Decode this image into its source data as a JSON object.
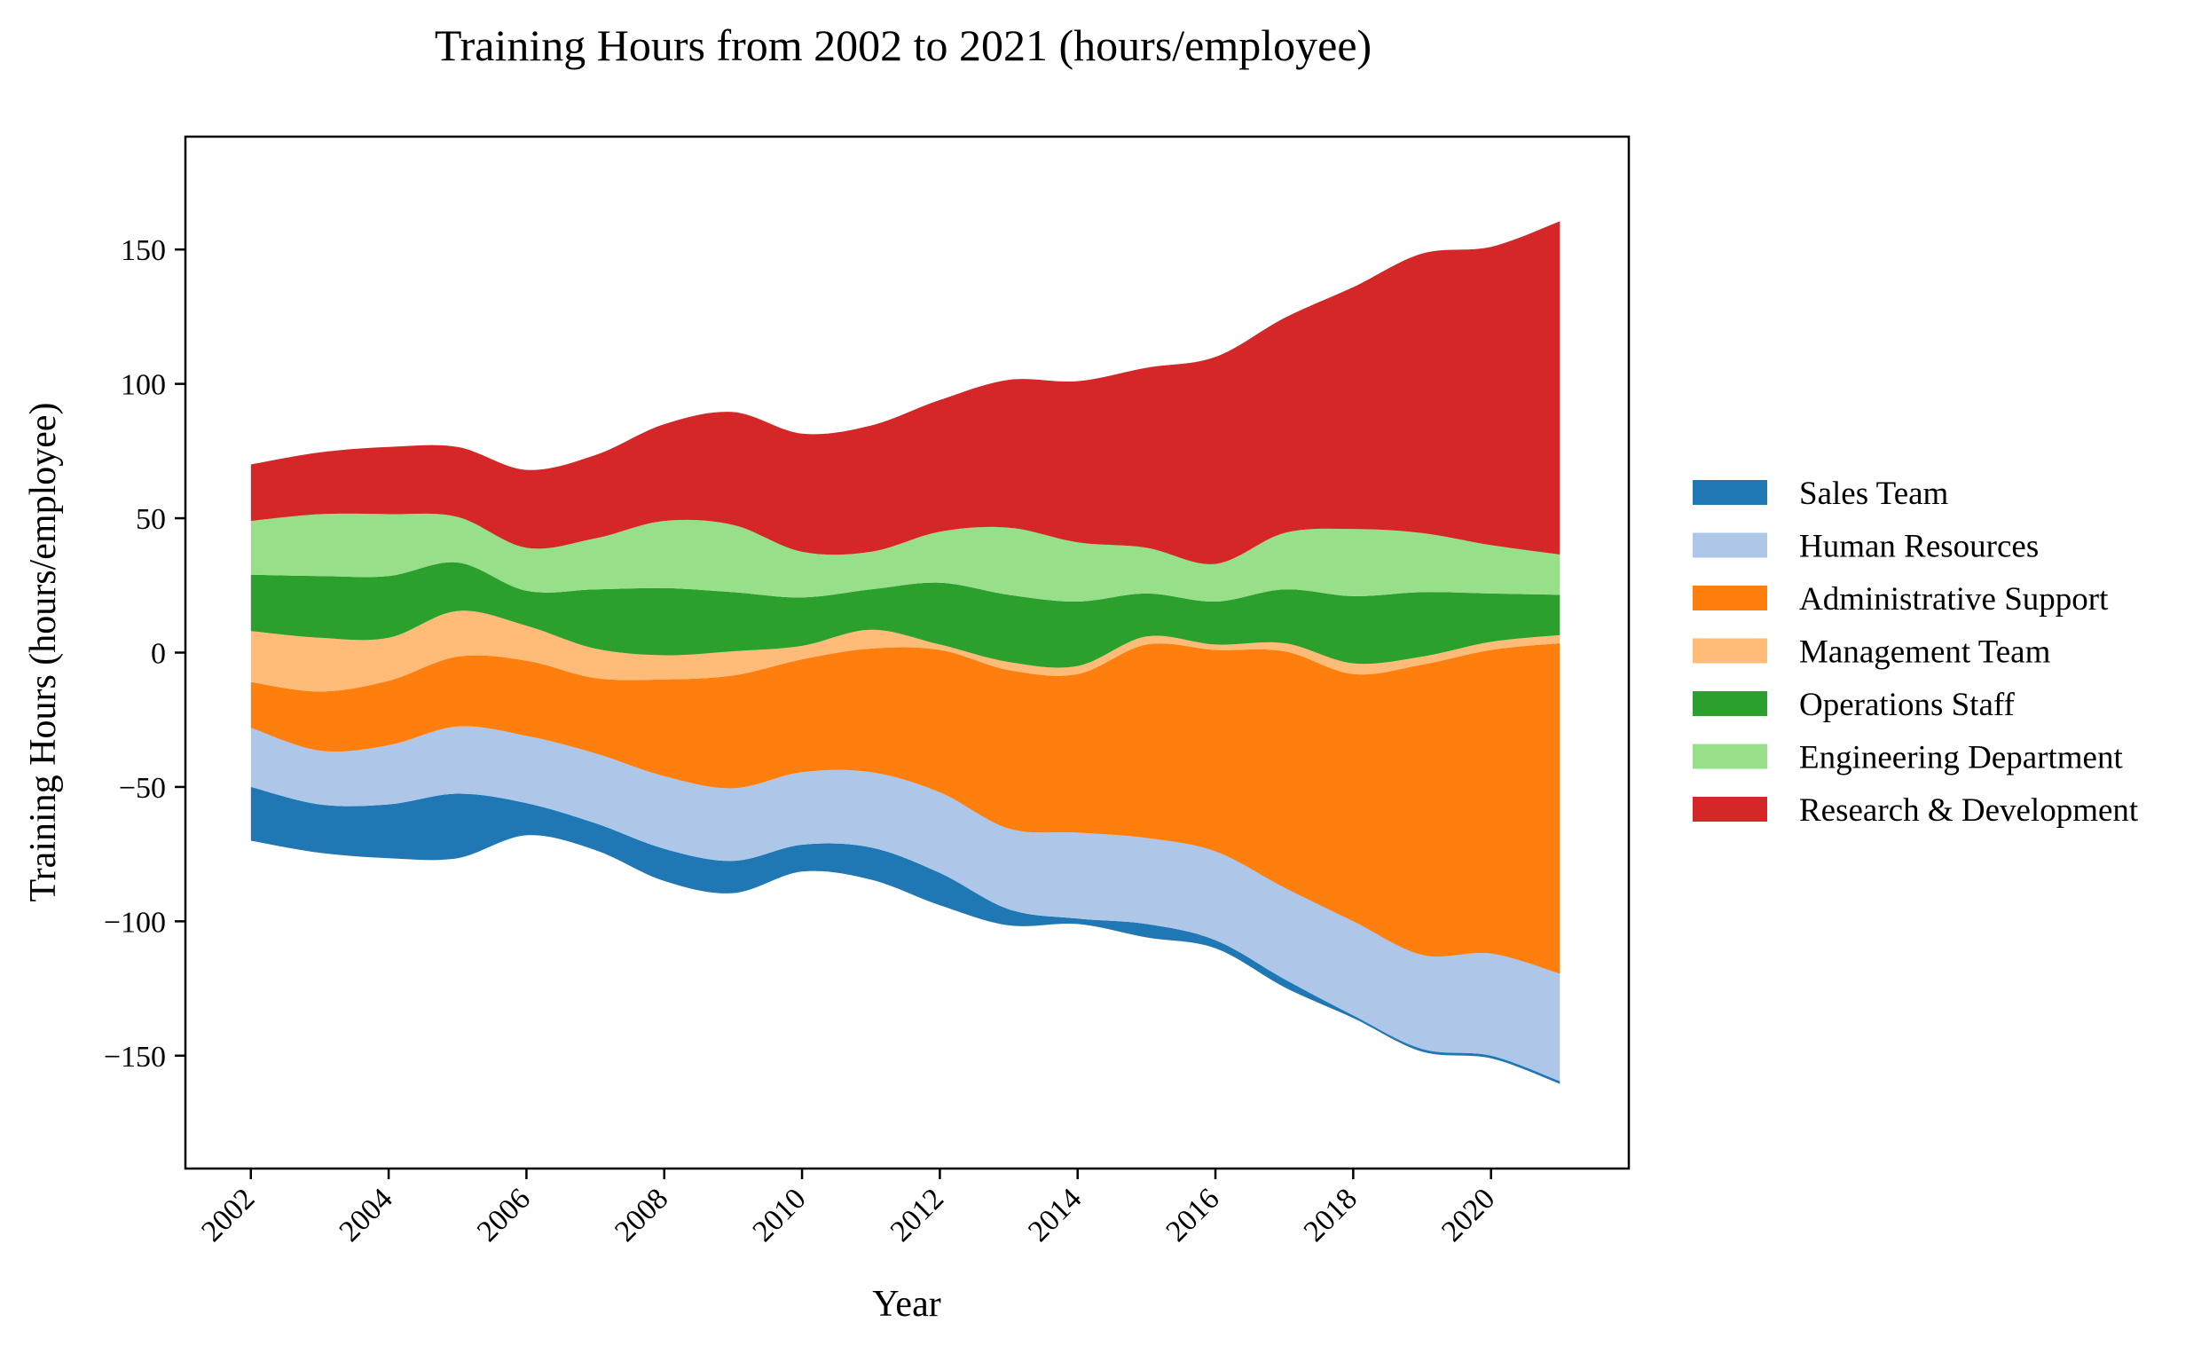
{
  "chart_data": {
    "type": "area",
    "subtype": "streamgraph",
    "title": "Training Hours from 2002 to 2021 (hours/employee)",
    "xlabel": "Year",
    "ylabel": "Training Hours (hours/employee)",
    "x": [
      2002,
      2003,
      2004,
      2005,
      2006,
      2007,
      2008,
      2009,
      2010,
      2011,
      2012,
      2013,
      2014,
      2015,
      2016,
      2017,
      2018,
      2019,
      2020,
      2021
    ],
    "x_ticks": [
      "2002",
      "2004",
      "2006",
      "2008",
      "2010",
      "2012",
      "2014",
      "2016",
      "2018",
      "2020"
    ],
    "x_tick_values": [
      2002,
      2004,
      2006,
      2008,
      2010,
      2012,
      2014,
      2016,
      2018,
      2020
    ],
    "y_ticks": [
      "150",
      "100",
      "50",
      "0",
      "−50",
      "−100",
      "−150"
    ],
    "y_tick_values": [
      150,
      100,
      50,
      0,
      -50,
      -100,
      -150
    ],
    "xlim": [
      2001.05,
      2022.0
    ],
    "ylim": [
      -192,
      192
    ],
    "grid": false,
    "legend_position": "right",
    "series": [
      {
        "name": "Sales Team",
        "color": "#1f77b4",
        "values": [
          20,
          18,
          20,
          24,
          12,
          10,
          12,
          12,
          10,
          12,
          12,
          6,
          2,
          5,
          3,
          3,
          1,
          1,
          1,
          1
        ]
      },
      {
        "name": "Human Resources",
        "color": "#aec7e8",
        "values": [
          22,
          20,
          22,
          25,
          25,
          26,
          27,
          27,
          27,
          28,
          30,
          30,
          32,
          32,
          33,
          34,
          35,
          35,
          38,
          40
        ]
      },
      {
        "name": "Administrative Support",
        "color": "#ff7f0e",
        "values": [
          17,
          22,
          24,
          26,
          28,
          28,
          36,
          42,
          42,
          46,
          53,
          59,
          59,
          72,
          75,
          88,
          92,
          108,
          113,
          123
        ]
      },
      {
        "name": "Management Team",
        "color": "#ffbb78",
        "values": [
          19,
          20,
          16,
          17,
          13,
          11,
          9,
          9,
          5,
          7,
          2,
          3,
          3,
          3,
          2,
          3,
          4,
          3,
          3,
          3
        ]
      },
      {
        "name": "Operations Staff",
        "color": "#2ca02c",
        "values": [
          21,
          23,
          23,
          18,
          13,
          22,
          25,
          22,
          18,
          15,
          23,
          25,
          24,
          16,
          16,
          20,
          25,
          24,
          18,
          15
        ]
      },
      {
        "name": "Engineering Department",
        "color": "#98df8a",
        "values": [
          20,
          23,
          23,
          17,
          16,
          19,
          25,
          25,
          17,
          14,
          19,
          25,
          22,
          17,
          14,
          21,
          25,
          22,
          18,
          15
        ]
      },
      {
        "name": "Research & Development",
        "color": "#d62728",
        "values": [
          21,
          23,
          25,
          26,
          29,
          31,
          36,
          42,
          44,
          47,
          49,
          55,
          60,
          67,
          77,
          80,
          90,
          104,
          111,
          124
        ]
      }
    ]
  }
}
